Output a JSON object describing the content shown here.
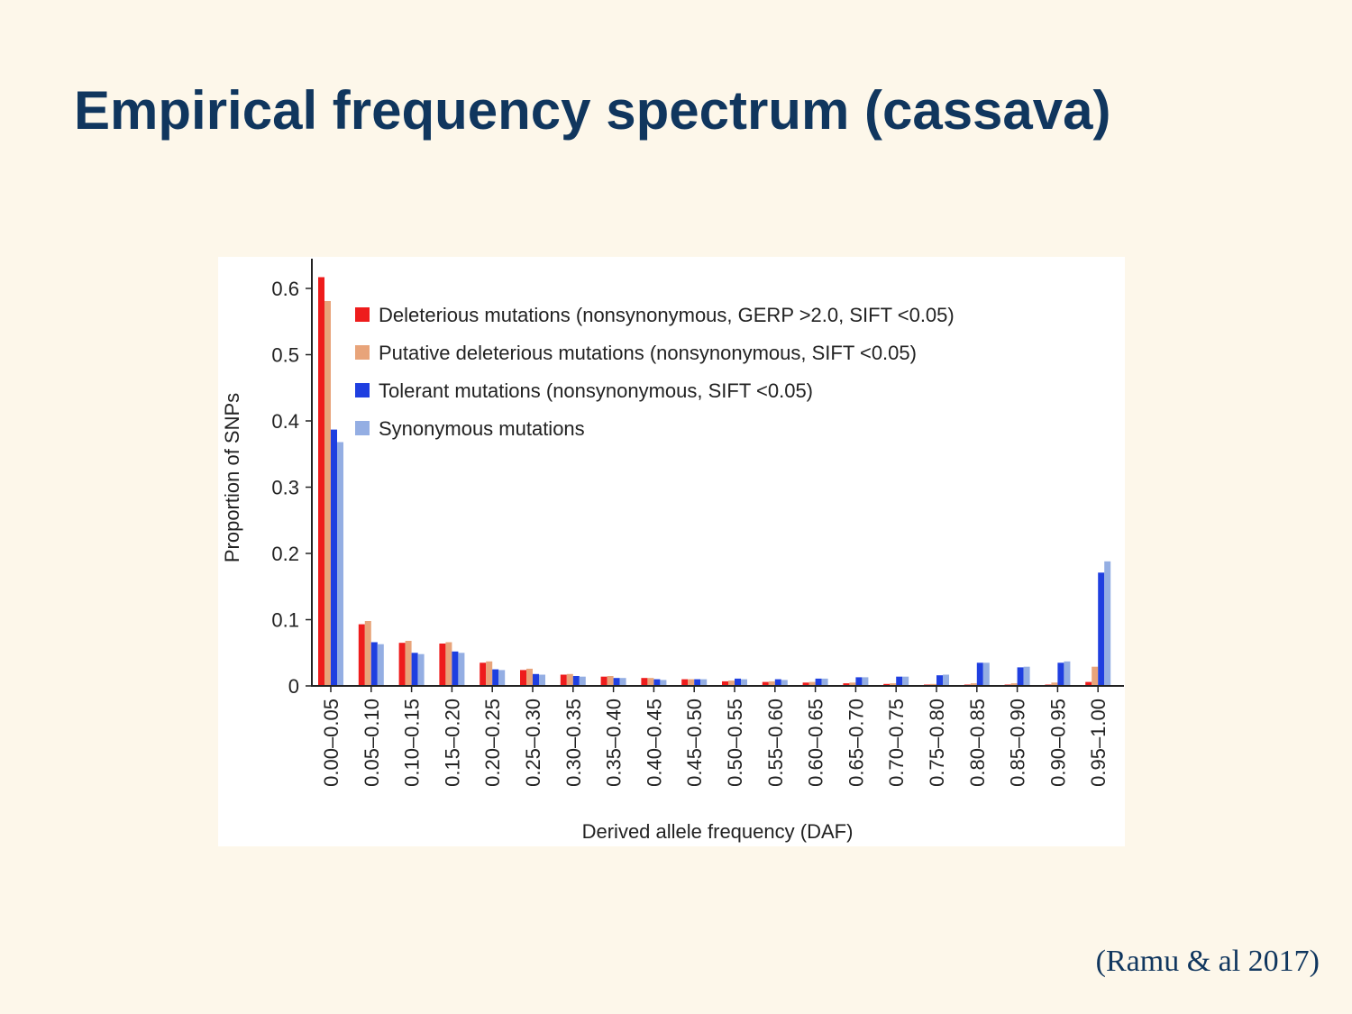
{
  "slide": {
    "title": "Empirical frequency spectrum (cassava)",
    "citation": "(Ramu & al 2017)"
  },
  "chart_data": {
    "type": "bar",
    "xlabel": "Derived allele frequency (DAF)",
    "ylabel": "Proportion of SNPs",
    "ylim": [
      0,
      0.65
    ],
    "yticks": [
      0,
      0.1,
      0.2,
      0.3,
      0.4,
      0.5,
      0.6
    ],
    "ytick_labels": [
      "0",
      "0.1",
      "0.2",
      "0.3",
      "0.4",
      "0.5",
      "0.6"
    ],
    "legend_position": "top-left",
    "grid": false,
    "categories": [
      "0.00–0.05",
      "0.05–0.10",
      "0.10–0.15",
      "0.15–0.20",
      "0.20–0.25",
      "0.25–0.30",
      "0.30–0.35",
      "0.35–0.40",
      "0.40–0.45",
      "0.45–0.50",
      "0.50–0.55",
      "0.55–0.60",
      "0.60–0.65",
      "0.65–0.70",
      "0.70–0.75",
      "0.75–0.80",
      "0.80–0.85",
      "0.85–0.90",
      "0.90–0.95",
      "0.95–1.00"
    ],
    "series": [
      {
        "name": "Deleterious mutations (nonsynonymous, GERP >2.0, SIFT <0.05)",
        "color": "#ee1c1c",
        "values": [
          0.617,
          0.093,
          0.065,
          0.064,
          0.035,
          0.024,
          0.017,
          0.014,
          0.012,
          0.01,
          0.007,
          0.006,
          0.005,
          0.004,
          0.003,
          0.002,
          0.002,
          0.002,
          0.002,
          0.006
        ]
      },
      {
        "name": "Putative deleterious mutations (nonsynonymous, SIFT <0.05)",
        "color": "#e8a47a",
        "values": [
          0.581,
          0.098,
          0.068,
          0.066,
          0.037,
          0.026,
          0.018,
          0.015,
          0.012,
          0.01,
          0.008,
          0.007,
          0.006,
          0.005,
          0.004,
          0.003,
          0.004,
          0.004,
          0.005,
          0.029
        ]
      },
      {
        "name": "Tolerant mutations (nonsynonymous, SIFT <0.05)",
        "color": "#1f3fe0",
        "values": [
          0.387,
          0.066,
          0.05,
          0.052,
          0.025,
          0.018,
          0.015,
          0.012,
          0.01,
          0.01,
          0.011,
          0.01,
          0.011,
          0.013,
          0.014,
          0.016,
          0.035,
          0.028,
          0.035,
          0.171
        ]
      },
      {
        "name": "Synonymous mutations",
        "color": "#94aee3",
        "values": [
          0.368,
          0.063,
          0.048,
          0.05,
          0.024,
          0.017,
          0.014,
          0.012,
          0.009,
          0.01,
          0.01,
          0.009,
          0.011,
          0.013,
          0.014,
          0.017,
          0.035,
          0.029,
          0.037,
          0.188
        ]
      }
    ]
  }
}
